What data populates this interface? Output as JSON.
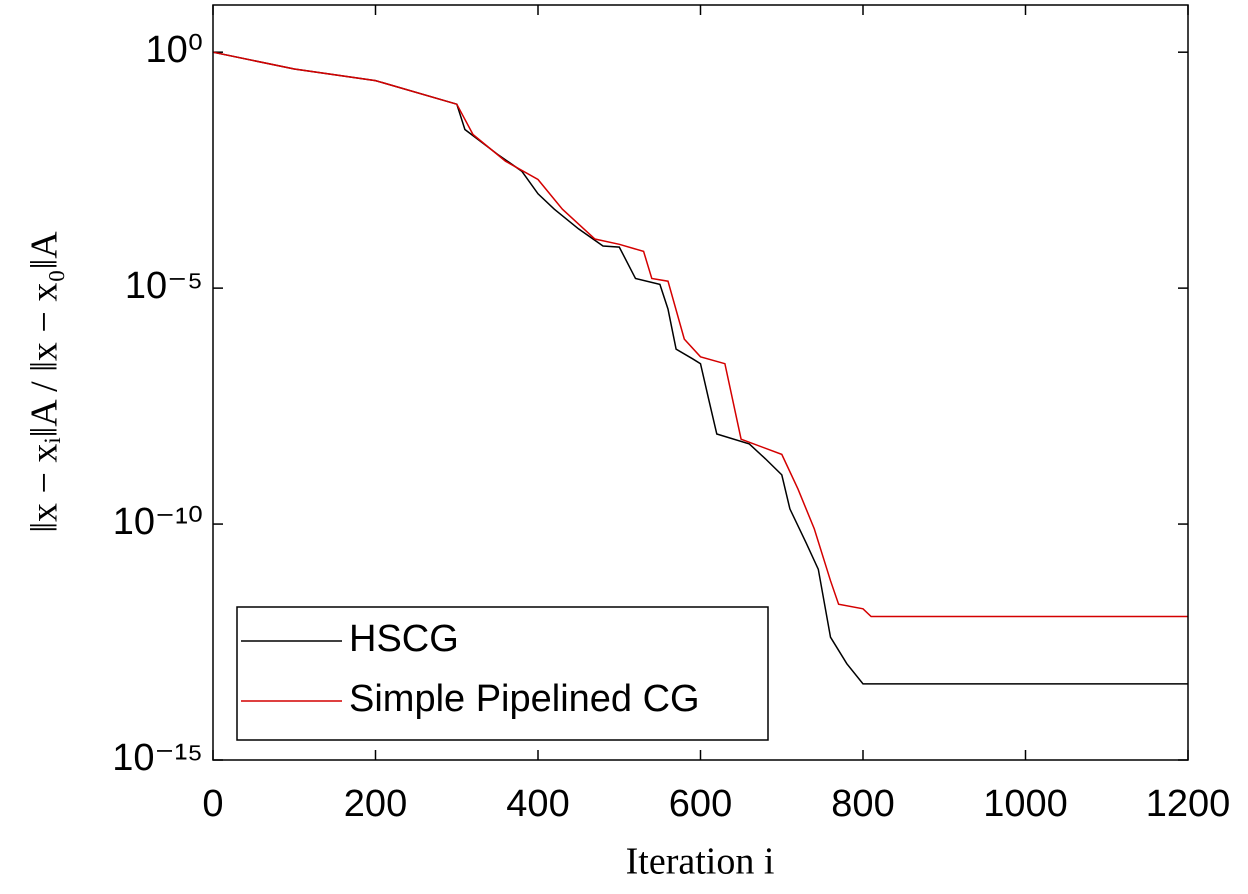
{
  "chart_data": {
    "type": "line",
    "xlabel": "Iteration i",
    "ylabel": "‖x − xᵢ‖A / ‖x − x₀‖A",
    "xlim": [
      0,
      1200
    ],
    "xticks": [
      0,
      200,
      400,
      600,
      800,
      1000,
      1200
    ],
    "ylim": [
      1e-15,
      10
    ],
    "yscale": "log",
    "yticks": [
      {
        "value": 1,
        "label": "10⁰"
      },
      {
        "value": 1e-05,
        "label": "10⁻⁵"
      },
      {
        "value": 1e-10,
        "label": "10⁻¹⁰"
      },
      {
        "value": 1e-15,
        "label": "10⁻¹⁵"
      }
    ],
    "grid": false,
    "legend": "lower left",
    "series": [
      {
        "name": "HSCG",
        "color": "#000000",
        "x": [
          0,
          100,
          200,
          300,
          310,
          350,
          380,
          400,
          420,
          450,
          480,
          500,
          520,
          550,
          560,
          570,
          590,
          600,
          610,
          620,
          660,
          680,
          700,
          710,
          730,
          745,
          760,
          780,
          800,
          1200
        ],
        "values": [
          1,
          0.44,
          0.25,
          0.079,
          0.023,
          0.0069,
          0.003,
          0.001,
          0.00047,
          0.00018,
          7.8e-05,
          7.4e-05,
          1.6e-05,
          1.2e-05,
          3.6e-06,
          5.1e-07,
          3.2e-07,
          2.5e-07,
          4.5e-08,
          8.1e-09,
          5e-09,
          2.4e-09,
          1.1e-09,
          2.1e-10,
          4e-11,
          1.1e-11,
          4e-13,
          1.1e-13,
          4.1e-14,
          4.1e-14
        ]
      },
      {
        "name": "Simple Pipelined CG",
        "color": "#d40000",
        "x": [
          0,
          100,
          200,
          300,
          320,
          360,
          400,
          430,
          470,
          500,
          530,
          540,
          560,
          580,
          600,
          630,
          650,
          700,
          720,
          740,
          760,
          770,
          800,
          810,
          1200
        ],
        "values": [
          1,
          0.44,
          0.25,
          0.079,
          0.018,
          0.0049,
          0.002,
          0.00047,
          0.00011,
          8.5e-05,
          6e-05,
          1.6e-05,
          1.4e-05,
          8.3e-07,
          3.5e-07,
          2.5e-07,
          6.3e-09,
          3e-09,
          5.5e-10,
          7.9e-11,
          6.3e-12,
          2e-12,
          1.6e-12,
          1.1e-12,
          1.1e-12
        ]
      }
    ]
  }
}
